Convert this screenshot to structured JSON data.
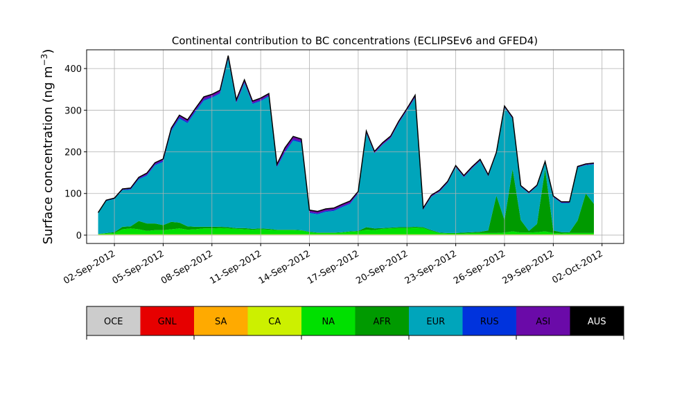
{
  "chart_data": {
    "type": "area",
    "stacked": true,
    "title": "Continental contribution to BC concentrations (ECLIPSEv6 and GFED4)",
    "ylabel": "Surface concentration (ng m$^{-3}$)",
    "ylabel_text": "Surface concentration (ng m",
    "ylabel_sup": "−3",
    "ylabel_close": ")",
    "xlim": [
      "2012-08-31T07:00",
      "2012-10-03T08:00"
    ],
    "ylim": [
      -20,
      445
    ],
    "grid": true,
    "yticks": [
      0,
      100,
      200,
      300,
      400
    ],
    "xticks": [
      "2012-09-02",
      "2012-09-05",
      "2012-09-08",
      "2012-09-11",
      "2012-09-14",
      "2012-09-17",
      "2012-09-20",
      "2012-09-23",
      "2012-09-26",
      "2012-09-29",
      "2012-10-02"
    ],
    "xtick_labels": [
      "02-Sep-2012",
      "05-Sep-2012",
      "08-Sep-2012",
      "11-Sep-2012",
      "14-Sep-2012",
      "17-Sep-2012",
      "20-Sep-2012",
      "23-Sep-2012",
      "26-Sep-2012",
      "29-Sep-2012",
      "02-Oct-2012"
    ],
    "legend_position": "below",
    "legend": [
      {
        "name": "OCE",
        "color": "#cccccc"
      },
      {
        "name": "GNL",
        "color": "#e60000"
      },
      {
        "name": "SA",
        "color": "#ffaa00"
      },
      {
        "name": "CA",
        "color": "#ccf000"
      },
      {
        "name": "NA",
        "color": "#00e000"
      },
      {
        "name": "AFR",
        "color": "#009a00"
      },
      {
        "name": "EUR",
        "color": "#00a5bb"
      },
      {
        "name": "RUS",
        "color": "#0033dd"
      },
      {
        "name": "ASI",
        "color": "#6a0aa8"
      },
      {
        "name": "AUS",
        "color": "#000000"
      }
    ],
    "x": [
      "2012-09-01",
      "2012-09-01T12:00",
      "2012-09-02",
      "2012-09-02T12:00",
      "2012-09-03",
      "2012-09-03T12:00",
      "2012-09-04",
      "2012-09-04T12:00",
      "2012-09-05",
      "2012-09-05T12:00",
      "2012-09-06",
      "2012-09-06T12:00",
      "2012-09-07",
      "2012-09-07T12:00",
      "2012-09-08",
      "2012-09-08T12:00",
      "2012-09-09",
      "2012-09-09T12:00",
      "2012-09-10",
      "2012-09-10T12:00",
      "2012-09-11",
      "2012-09-11T12:00",
      "2012-09-12",
      "2012-09-12T12:00",
      "2012-09-13",
      "2012-09-13T12:00",
      "2012-09-14",
      "2012-09-14T12:00",
      "2012-09-15",
      "2012-09-15T12:00",
      "2012-09-16",
      "2012-09-16T12:00",
      "2012-09-17",
      "2012-09-17T12:00",
      "2012-09-18",
      "2012-09-18T12:00",
      "2012-09-19",
      "2012-09-19T12:00",
      "2012-09-20",
      "2012-09-20T12:00",
      "2012-09-21",
      "2012-09-21T12:00",
      "2012-09-22",
      "2012-09-22T12:00",
      "2012-09-23",
      "2012-09-23T12:00",
      "2012-09-24",
      "2012-09-24T12:00",
      "2012-09-25",
      "2012-09-25T12:00",
      "2012-09-26",
      "2012-09-26T12:00",
      "2012-09-27",
      "2012-09-27T12:00",
      "2012-09-28",
      "2012-09-28T12:00",
      "2012-09-29",
      "2012-09-29T12:00",
      "2012-09-30",
      "2012-09-30T12:00",
      "2012-10-01",
      "2012-10-01T12:00"
    ],
    "series": [
      {
        "name": "OCE",
        "color": "#cccccc",
        "values": [
          1,
          1,
          1,
          1,
          1,
          1,
          1,
          1,
          1,
          1,
          1,
          1,
          1,
          1,
          1,
          1,
          1,
          1,
          1,
          1,
          1,
          1,
          1,
          1,
          1,
          1,
          1,
          1,
          1,
          1,
          1,
          1,
          1,
          1,
          1,
          1,
          1,
          1,
          1,
          1,
          1,
          1,
          1,
          1,
          1,
          1,
          1,
          1,
          1,
          1,
          1,
          1,
          1,
          1,
          1,
          1,
          1,
          1,
          1,
          1,
          1,
          1
        ]
      },
      {
        "name": "GNL",
        "color": "#e60000",
        "values": [
          0,
          0,
          0,
          0,
          0,
          0,
          0,
          0,
          0,
          0,
          0,
          0,
          0,
          0,
          0,
          0,
          0,
          0,
          0,
          0,
          0,
          0,
          0,
          0,
          0,
          0,
          0,
          0,
          0,
          0,
          0,
          0,
          0,
          0,
          0,
          0,
          0,
          0,
          0,
          0,
          0,
          0,
          0,
          0,
          0,
          0,
          0,
          0,
          0,
          0,
          0,
          0,
          0,
          0,
          0,
          0,
          0,
          0,
          0,
          0,
          0,
          0
        ]
      },
      {
        "name": "SA",
        "color": "#ffaa00",
        "values": [
          0,
          0,
          0,
          0,
          0,
          0,
          0,
          0,
          0,
          0,
          0,
          0,
          0,
          0,
          0,
          0,
          0,
          0,
          0,
          0,
          0,
          0,
          0,
          0,
          0,
          0,
          0,
          0,
          0,
          0,
          0,
          0,
          0,
          0,
          0,
          0,
          0,
          0,
          0,
          0,
          0,
          0,
          0,
          0,
          0,
          0,
          0,
          0,
          0,
          0,
          0,
          0,
          0,
          0,
          0,
          0,
          0,
          0,
          0,
          0,
          0,
          0
        ]
      },
      {
        "name": "CA",
        "color": "#ccf000",
        "values": [
          1,
          1,
          1,
          1,
          1,
          1,
          1,
          1,
          1,
          1,
          1,
          1,
          1,
          1,
          1,
          1,
          1,
          1,
          1,
          1,
          1,
          1,
          1,
          1,
          1,
          1,
          1,
          1,
          1,
          1,
          1,
          1,
          1,
          1,
          1,
          1,
          1,
          1,
          1,
          1,
          1,
          1,
          1,
          1,
          1,
          1,
          1,
          1,
          1,
          1,
          1,
          1,
          1,
          1,
          1,
          1,
          1,
          1,
          1,
          1,
          1,
          1
        ]
      },
      {
        "name": "NA",
        "color": "#00e000",
        "values": [
          1,
          2,
          3,
          12,
          14,
          12,
          8,
          10,
          10,
          12,
          14,
          11,
          12,
          14,
          14,
          15,
          14,
          13,
          12,
          11,
          12,
          11,
          10,
          10,
          10,
          9,
          5,
          3,
          3,
          3,
          4,
          6,
          7,
          11,
          10,
          13,
          14,
          15,
          15,
          16,
          15,
          8,
          3,
          2,
          2,
          2,
          3,
          3,
          3,
          3,
          4,
          7,
          4,
          4,
          5,
          7,
          3,
          2,
          3,
          3,
          3,
          3
        ]
      },
      {
        "name": "AFR",
        "color": "#009a00",
        "values": [
          0,
          1,
          2,
          6,
          5,
          20,
          18,
          16,
          12,
          18,
          14,
          8,
          6,
          4,
          4,
          3,
          3,
          2,
          3,
          2,
          2,
          2,
          1,
          1,
          1,
          1,
          1,
          1,
          1,
          1,
          1,
          1,
          1,
          6,
          4,
          2,
          2,
          2,
          2,
          2,
          2,
          2,
          1,
          1,
          1,
          2,
          2,
          3,
          6,
          90,
          30,
          150,
          30,
          4,
          20,
          150,
          6,
          3,
          2,
          30,
          95,
          70
        ]
      },
      {
        "name": "EUR",
        "color": "#00a5bb",
        "values": [
          50,
          77,
          80,
          88,
          88,
          100,
          115,
          140,
          152,
          218,
          250,
          248,
          277,
          303,
          310,
          320,
          404,
          300,
          348,
          300,
          306,
          318,
          150,
          186,
          214,
          210,
          45,
          44,
          50,
          52,
          60,
          66,
          90,
          225,
          180,
          200,
          215,
          250,
          280,
          310,
          42,
          80,
          98,
          120,
          158,
          133,
          153,
          170,
          130,
          100,
          270,
          120,
          80,
          90,
          90,
          15,
          80,
          70,
          70,
          127,
          68,
          95
        ]
      },
      {
        "name": "RUS",
        "color": "#0033dd",
        "values": [
          0,
          1,
          1,
          1,
          2,
          2,
          2,
          2,
          3,
          3,
          3,
          3,
          3,
          3,
          2,
          2,
          2,
          2,
          2,
          2,
          2,
          2,
          2,
          3,
          3,
          3,
          2,
          2,
          2,
          2,
          2,
          2,
          1,
          1,
          1,
          1,
          1,
          1,
          1,
          1,
          1,
          1,
          1,
          1,
          1,
          1,
          1,
          1,
          1,
          1,
          1,
          1,
          1,
          1,
          1,
          1,
          1,
          1,
          1,
          1,
          1,
          1
        ]
      },
      {
        "name": "ASI",
        "color": "#6a0aa8",
        "values": [
          1,
          1,
          1,
          2,
          2,
          3,
          4,
          4,
          4,
          4,
          5,
          5,
          5,
          6,
          6,
          6,
          6,
          6,
          6,
          5,
          5,
          5,
          5,
          8,
          7,
          6,
          5,
          5,
          5,
          5,
          5,
          5,
          4,
          5,
          4,
          4,
          4,
          4,
          4,
          5,
          3,
          3,
          3,
          3,
          3,
          3,
          3,
          3,
          3,
          3,
          3,
          3,
          2,
          2,
          2,
          2,
          2,
          2,
          2,
          2,
          2,
          2
        ]
      },
      {
        "name": "AUS",
        "color": "#000000",
        "values": [
          0,
          0,
          0,
          0,
          0,
          0,
          0,
          0,
          0,
          0,
          0,
          0,
          0,
          0,
          0,
          0,
          0,
          0,
          0,
          0,
          0,
          0,
          0,
          0,
          0,
          0,
          0,
          0,
          0,
          0,
          0,
          0,
          0,
          0,
          0,
          0,
          0,
          0,
          0,
          0,
          0,
          0,
          0,
          0,
          0,
          0,
          0,
          0,
          0,
          0,
          0,
          0,
          0,
          0,
          0,
          0,
          0,
          0,
          0,
          0,
          0,
          0
        ]
      }
    ]
  }
}
